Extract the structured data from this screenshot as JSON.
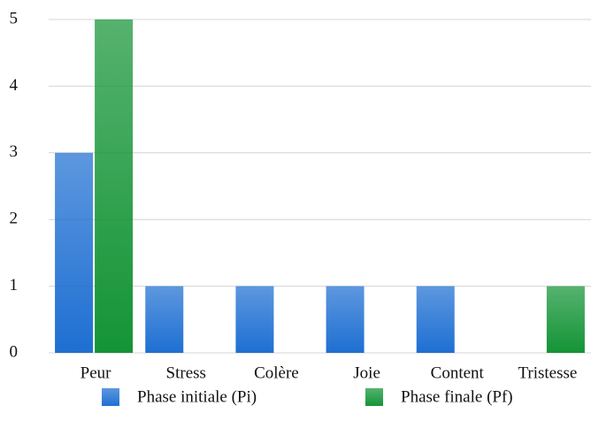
{
  "chart_data": {
    "type": "bar",
    "categories": [
      "Peur",
      "Stress",
      "Colère",
      "Joie",
      "Content",
      "Tristesse"
    ],
    "series": [
      {
        "name": "Phase initiale (Pi)",
        "color": "#1e6fd2",
        "values": [
          3,
          1,
          1,
          1,
          1,
          0
        ]
      },
      {
        "name": "Phase finale (Pf)",
        "color": "#149436",
        "values": [
          5,
          0,
          0,
          0,
          0,
          1
        ]
      }
    ],
    "ylim": [
      0,
      5
    ],
    "yticks": [
      0,
      1,
      2,
      3,
      4,
      5
    ],
    "grid": true,
    "legend": "bottom"
  }
}
